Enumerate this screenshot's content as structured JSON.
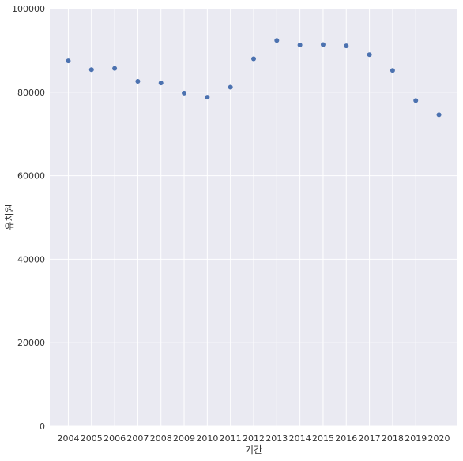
{
  "chart_data": {
    "type": "scatter",
    "title": "",
    "xlabel": "기간",
    "ylabel": "유치원",
    "x": [
      "2004",
      "2005",
      "2006",
      "2007",
      "2008",
      "2009",
      "2010",
      "2011",
      "2012",
      "2013",
      "2014",
      "2015",
      "2016",
      "2017",
      "2018",
      "2019",
      "2020"
    ],
    "y": [
      87500,
      85400,
      85700,
      82600,
      82200,
      79800,
      78800,
      81200,
      88000,
      92400,
      91300,
      91400,
      91100,
      89000,
      85200,
      78000,
      74600
    ],
    "ylim": [
      0,
      100000
    ],
    "yticks": [
      0,
      20000,
      40000,
      60000,
      80000,
      100000
    ],
    "grid": true,
    "background_color": "#eaeaf2",
    "grid_color": "#ffffff",
    "marker_color": "#4c72b0"
  }
}
